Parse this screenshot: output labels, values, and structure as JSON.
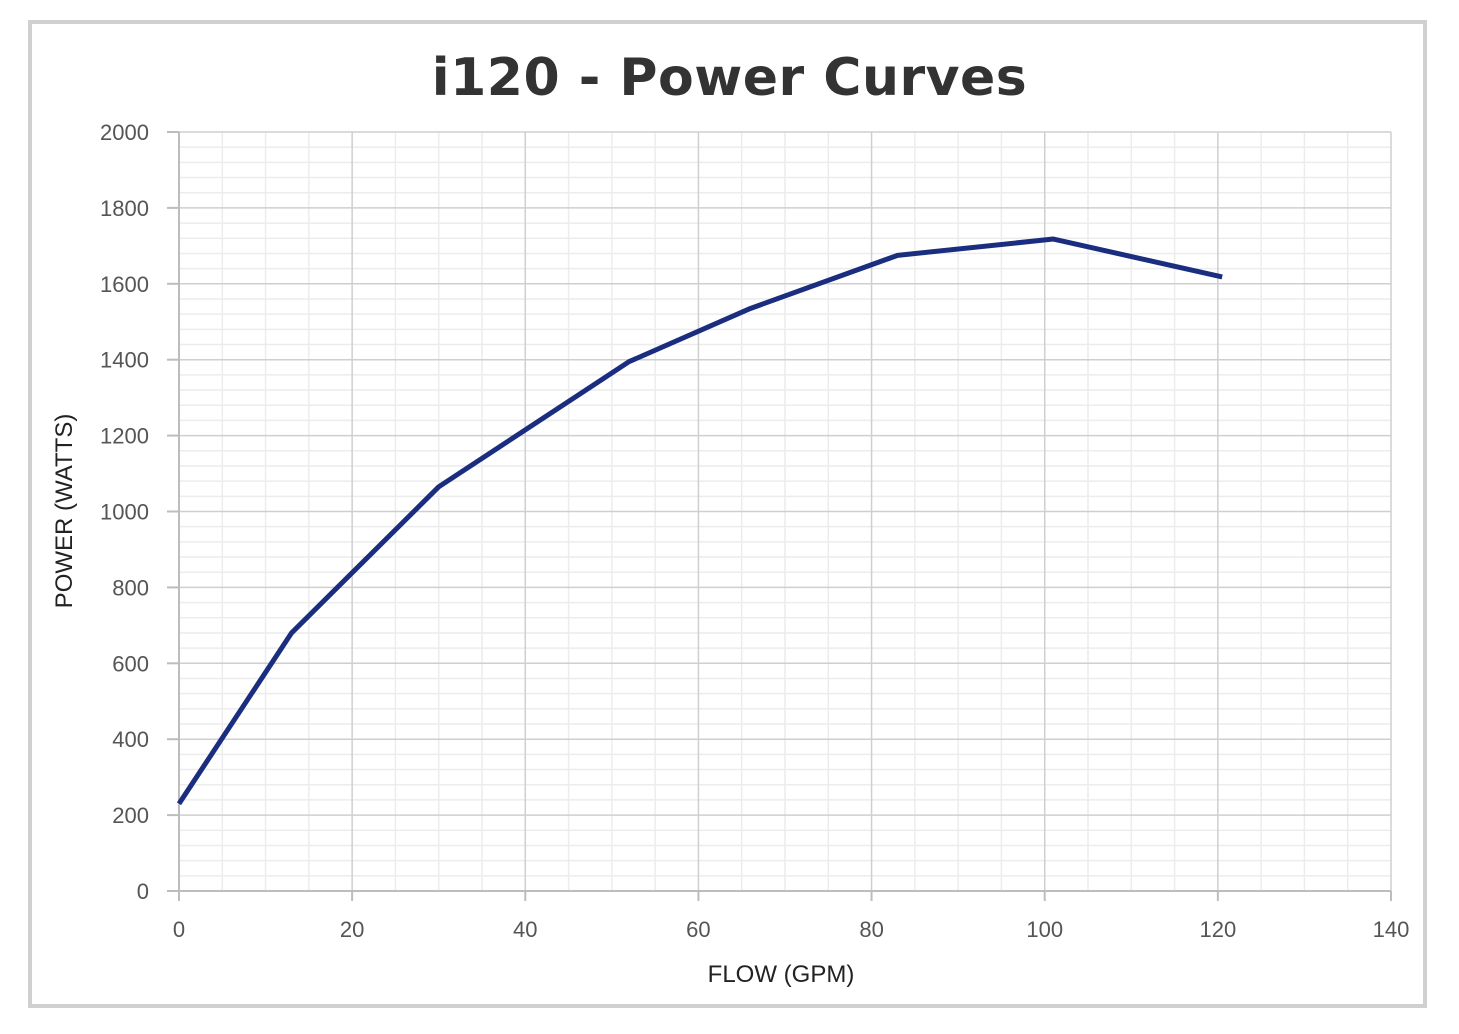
{
  "chart_data": {
    "type": "line",
    "title": "i120 - Power Curves",
    "xlabel": "FLOW (GPM)",
    "ylabel": "POWER (WATTS)",
    "xlim": [
      0,
      140
    ],
    "ylim": [
      0,
      2000
    ],
    "xticks": [
      0,
      20,
      40,
      60,
      80,
      100,
      120,
      140
    ],
    "yticks": [
      0,
      200,
      400,
      600,
      800,
      1000,
      1200,
      1400,
      1600,
      1800,
      2000
    ],
    "minor_grid": {
      "x_step": 5,
      "y_step": 40
    },
    "grid": true,
    "legend": "none",
    "series": [
      {
        "color": "#1a2d7f",
        "x": [
          0,
          13,
          30,
          52,
          66,
          83,
          101,
          120.5
        ],
        "y": [
          230,
          680,
          1065,
          1395,
          1535,
          1675,
          1718,
          1618
        ]
      }
    ]
  }
}
